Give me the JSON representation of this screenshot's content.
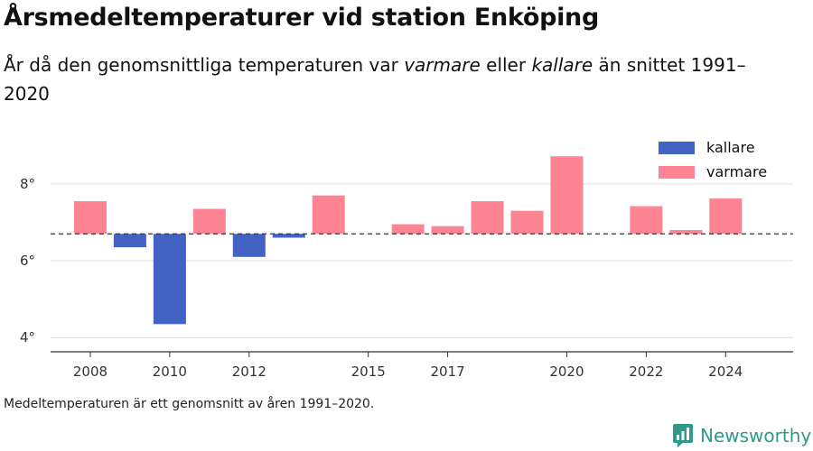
{
  "title": "Årsmedeltemperaturer vid station Enköping",
  "subtitle": {
    "part1": "År då den genomsnittliga temperaturen var ",
    "em1": "varmare",
    "part2": " eller ",
    "em2": "kallare",
    "part3": " än snittet 1991–2020"
  },
  "footnote": "Medeltemperaturen är ett genomsnitt av åren 1991–2020.",
  "brand": {
    "name": "Newsworthy",
    "logo_icon": "newsworthy-logo-icon",
    "color": "#2f9a8a"
  },
  "chart_data": {
    "type": "bar",
    "baseline": 6.7,
    "baseline_style": "dashed",
    "ylim": [
      3.7,
      9.5
    ],
    "yticks": [
      4,
      6,
      8
    ],
    "ytick_labels": [
      "4°",
      "6°",
      "8°"
    ],
    "xlim": [
      2007.0,
      2025.7
    ],
    "xticks": [
      2008,
      2010,
      2012,
      2015,
      2017,
      2020,
      2022,
      2024
    ],
    "xtick_labels": [
      "2008",
      "2010",
      "2012",
      "2015",
      "2017",
      "2020",
      "2022",
      "2024"
    ],
    "grid": "horizontal",
    "legend_position": "top-right",
    "colors": {
      "kallare": "#4263c4",
      "varmare": "#ff8493"
    },
    "series": [
      {
        "name": "kallare",
        "values": [
          {
            "year": 2009,
            "value": 6.35
          },
          {
            "year": 2010,
            "value": 4.35
          },
          {
            "year": 2012,
            "value": 6.1
          },
          {
            "year": 2013,
            "value": 6.6
          }
        ]
      },
      {
        "name": "varmare",
        "values": [
          {
            "year": 2008,
            "value": 7.55
          },
          {
            "year": 2011,
            "value": 7.35
          },
          {
            "year": 2014,
            "value": 7.7
          },
          {
            "year": 2016,
            "value": 6.95
          },
          {
            "year": 2017,
            "value": 6.9
          },
          {
            "year": 2018,
            "value": 7.55
          },
          {
            "year": 2019,
            "value": 7.3
          },
          {
            "year": 2020,
            "value": 8.72
          },
          {
            "year": 2022,
            "value": 7.42
          },
          {
            "year": 2023,
            "value": 6.8
          },
          {
            "year": 2024,
            "value": 7.62
          }
        ]
      }
    ]
  }
}
